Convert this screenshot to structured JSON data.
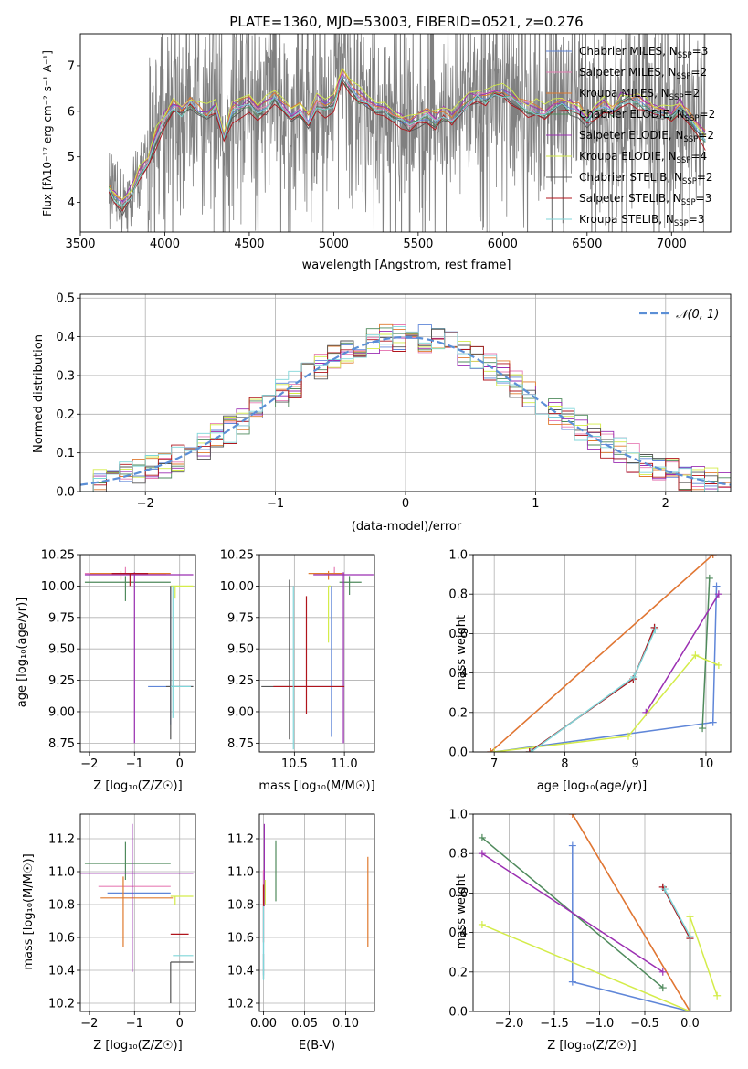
{
  "colors": {
    "Chabrier MILES": "#5f86d8",
    "Salpeter MILES": "#e77fb6",
    "Kroupa MILES": "#e07a2e",
    "Chabrier ELODIE": "#4f8a5c",
    "Salpeter ELODIE": "#9b2fb2",
    "Kroupa ELODIE": "#d4ec4a",
    "Chabrier STELIB": "#555555",
    "Salpeter STELIB": "#b0151c",
    "Kroupa STELIB": "#7fd6d9",
    "data": "#808080",
    "gaussian": "#5b8fd6"
  },
  "chart_data": [
    {
      "type": "line",
      "id": "spectrum",
      "title": "PLATE=1360, MJD=53003, FIBERID=0521, z=0.276",
      "xlabel": "wavelength [Angstrom, rest frame]",
      "ylabel": "Flux [fλ10⁻¹⁷ erg cm⁻² s⁻¹ A⁻¹]",
      "xlim": [
        3500,
        7350
      ],
      "ylim": [
        3.35,
        7.7
      ],
      "xticks": [
        3500,
        4000,
        4500,
        5000,
        5500,
        6000,
        6500,
        7000
      ],
      "yticks": [
        4,
        5,
        6,
        7
      ],
      "grid": false,
      "legend_position": "top-right",
      "legend": [
        {
          "name": "Chabrier MILES",
          "label": "Chabrier MILES, N",
          "sub": "SSP",
          "n": "=3"
        },
        {
          "name": "Salpeter MILES",
          "label": "Salpeter MILES, N",
          "sub": "SSP",
          "n": "=2"
        },
        {
          "name": "Kroupa MILES",
          "label": "Kroupa MILES, N",
          "sub": "SSP",
          "n": "=2"
        },
        {
          "name": "Chabrier ELODIE",
          "label": "Chabrier ELODIE, N",
          "sub": "SSP",
          "n": "=2"
        },
        {
          "name": "Salpeter ELODIE",
          "label": "Salpeter ELODIE, N",
          "sub": "SSP",
          "n": "=2"
        },
        {
          "name": "Kroupa ELODIE",
          "label": "Kroupa ELODIE, N",
          "sub": "SSP",
          "n": "=4"
        },
        {
          "name": "Chabrier STELIB",
          "label": "Chabrier STELIB, N",
          "sub": "SSP",
          "n": "=2"
        },
        {
          "name": "Salpeter STELIB",
          "label": "Salpeter STELIB, N",
          "sub": "SSP",
          "n": "=3"
        },
        {
          "name": "Kroupa STELIB",
          "label": "Kroupa STELIB, N",
          "sub": "SSP",
          "n": "=3"
        }
      ],
      "model_x": [
        3670,
        3700,
        3750,
        3800,
        3850,
        3900,
        3950,
        4000,
        4050,
        4100,
        4150,
        4200,
        4250,
        4300,
        4350,
        4400,
        4450,
        4500,
        4550,
        4600,
        4650,
        4700,
        4750,
        4800,
        4850,
        4900,
        4950,
        5000,
        5050,
        5100,
        5150,
        5200,
        5250,
        5300,
        5350,
        5400,
        5450,
        5500,
        5550,
        5600,
        5650,
        5700,
        5750,
        5800,
        5850,
        5900,
        5950,
        6000,
        6050,
        6100,
        6150,
        6200,
        6250,
        6300,
        6350,
        6400,
        6450,
        6500,
        6550,
        6600,
        6650,
        6700,
        6750,
        6800,
        6850,
        6900,
        6950,
        7000,
        7050,
        7100,
        7150,
        7200
      ],
      "model_y": [
        4.3,
        4.1,
        3.9,
        4.2,
        4.6,
        4.9,
        5.4,
        5.8,
        6.1,
        6.0,
        6.2,
        6.0,
        5.9,
        6.1,
        5.5,
        6.0,
        6.1,
        6.2,
        6.0,
        6.1,
        6.3,
        6.1,
        5.9,
        6.0,
        5.8,
        6.2,
        6.1,
        6.2,
        6.8,
        6.5,
        6.3,
        6.2,
        6.1,
        6.0,
        5.9,
        5.8,
        5.7,
        5.8,
        5.9,
        5.8,
        5.9,
        5.8,
        6.0,
        6.2,
        6.3,
        6.3,
        6.4,
        6.4,
        6.3,
        6.2,
        6.1,
        6.0,
        5.9,
        6.1,
        6.2,
        6.1,
        6.0,
        5.8,
        6.0,
        6.1,
        6.0,
        6.2,
        6.3,
        6.2,
        6.1,
        6.0,
        6.0,
        5.9,
        6.1,
        5.9,
        5.6,
        5.4
      ],
      "model_offsets": [
        0.0,
        0.02,
        0.08,
        -0.05,
        0.1,
        0.15,
        -0.08,
        -0.12,
        -0.03
      ],
      "data_range": [
        3670,
        7200
      ],
      "data_noise": 1.6
    },
    {
      "type": "histogram",
      "id": "residuals",
      "xlabel": "(data-model)/error",
      "ylabel": "Normed distribution",
      "xlim": [
        -2.5,
        2.5
      ],
      "ylim": [
        0,
        0.51
      ],
      "xticks": [
        -2,
        -1,
        0,
        1,
        2
      ],
      "yticks": [
        0.0,
        0.1,
        0.2,
        0.3,
        0.4,
        0.5
      ],
      "grid": true,
      "legend_position": "top-right",
      "legend_label": "𝒩(0, 1)",
      "bin_width": 0.1,
      "bin_start": -2.5
    },
    {
      "type": "scatter",
      "id": "age-vs-Z",
      "xlabel": "Z [log₁₀(Z/Z☉)]",
      "ylabel": "age  [log₁₀(age/yr)]",
      "xlim": [
        -2.2,
        0.35
      ],
      "ylim": [
        8.68,
        10.25
      ],
      "xticks": [
        -2,
        -1,
        0
      ],
      "yticks": [
        8.75,
        9.0,
        9.25,
        9.5,
        9.75,
        10.0,
        10.25
      ],
      "grid": true,
      "points": [
        {
          "model": "Chabrier MILES",
          "x": -0.2,
          "y": 9.2,
          "xerr": [
            0.5,
            0.5
          ],
          "yerr": [
            0.3,
            0.8
          ]
        },
        {
          "model": "Salpeter MILES",
          "x": -1.2,
          "y": 10.1,
          "xerr": [
            0.9,
            0.9
          ],
          "yerr": [
            0.0,
            0.05
          ]
        },
        {
          "model": "Kroupa MILES",
          "x": -1.3,
          "y": 10.1,
          "xerr": [
            0.7,
            1.1
          ],
          "yerr": [
            0.05,
            0.02
          ]
        },
        {
          "model": "Chabrier ELODIE",
          "x": -1.2,
          "y": 10.03,
          "xerr": [
            0.9,
            1.0
          ],
          "yerr": [
            0.15,
            0.05
          ]
        },
        {
          "model": "Salpeter ELODIE",
          "x": -1.0,
          "y": 10.09,
          "xerr": [
            1.1,
            1.3
          ],
          "yerr": [
            1.34,
            0.02
          ]
        },
        {
          "model": "Kroupa ELODIE",
          "x": -0.1,
          "y": 10.0,
          "xerr": [
            0.1,
            0.4
          ],
          "yerr": [
            0.1,
            0.0
          ]
        },
        {
          "model": "Chabrier STELIB",
          "x": -0.2,
          "y": 9.2,
          "xerr": [
            0.1,
            0.5
          ],
          "yerr": [
            0.42,
            0.8
          ]
        },
        {
          "model": "Salpeter STELIB",
          "x": -1.1,
          "y": 10.1,
          "xerr": [
            0.4,
            0.4
          ],
          "yerr": [
            0.1,
            0.0
          ]
        },
        {
          "model": "Kroupa STELIB",
          "x": -0.15,
          "y": 9.2,
          "xerr": [
            0.05,
            0.4
          ],
          "yerr": [
            0.25,
            0.8
          ]
        }
      ]
    },
    {
      "type": "scatter",
      "id": "age-vs-mass",
      "xlabel": "mass [log₁₀(M/M☉)]",
      "xlim": [
        10.15,
        11.3
      ],
      "ylim": [
        8.68,
        10.25
      ],
      "xticks": [
        10.5,
        11.0
      ],
      "yticks": [
        8.75,
        9.0,
        9.25,
        9.5,
        9.75,
        10.0,
        10.25
      ],
      "grid": true,
      "points": [
        {
          "model": "Chabrier MILES",
          "x": 10.87,
          "y": 9.2,
          "xerr": [
            0.42,
            0.12
          ],
          "yerr": [
            0.4,
            0.8
          ]
        },
        {
          "model": "Salpeter MILES",
          "x": 10.9,
          "y": 10.1,
          "xerr": [
            0.1,
            0.1
          ],
          "yerr": [
            0.0,
            0.05
          ]
        },
        {
          "model": "Kroupa MILES",
          "x": 10.84,
          "y": 10.1,
          "xerr": [
            0.2,
            0.14
          ],
          "yerr": [
            0.05,
            0.02
          ]
        },
        {
          "model": "Chabrier ELODIE",
          "x": 11.05,
          "y": 10.03,
          "xerr": [
            0.1,
            0.12
          ],
          "yerr": [
            0.1,
            0.05
          ]
        },
        {
          "model": "Salpeter ELODIE",
          "x": 10.99,
          "y": 10.09,
          "xerr": [
            0.3,
            0.3
          ],
          "yerr": [
            1.34,
            0.02
          ]
        },
        {
          "model": "Kroupa ELODIE",
          "x": 10.84,
          "y": 10.0,
          "xerr": [
            0.0,
            0.02
          ],
          "yerr": [
            0.45,
            0.0
          ]
        },
        {
          "model": "Chabrier STELIB",
          "x": 10.45,
          "y": 9.2,
          "xerr": [
            0.28,
            0.0
          ],
          "yerr": [
            0.42,
            0.85
          ]
        },
        {
          "model": "Salpeter STELIB",
          "x": 10.62,
          "y": 9.2,
          "xerr": [
            0.33,
            0.38
          ],
          "yerr": [
            0.22,
            0.72
          ]
        },
        {
          "model": "Kroupa STELIB",
          "x": 10.49,
          "y": 9.2,
          "xerr": [
            0.0,
            0.0
          ],
          "yerr": [
            0.5,
            0.8
          ]
        }
      ]
    },
    {
      "type": "line",
      "id": "weight-vs-age",
      "xlabel": "age  [log₁₀(age/yr)]",
      "ylabel": "mass weight",
      "xlim": [
        6.7,
        10.35
      ],
      "ylim": [
        0,
        1
      ],
      "xticks": [
        7,
        8,
        9,
        10
      ],
      "yticks": [
        0.0,
        0.2,
        0.4,
        0.6,
        0.8,
        1.0
      ],
      "grid": true,
      "series": [
        {
          "model": "Chabrier MILES",
          "x": [
            7.0,
            10.1,
            10.15
          ],
          "y": [
            0.0,
            0.15,
            0.84
          ]
        },
        {
          "model": "Salpeter MILES",
          "x": [
            6.95,
            10.1
          ],
          "y": [
            0.0,
            1.0
          ]
        },
        {
          "model": "Kroupa MILES",
          "x": [
            6.95,
            10.1
          ],
          "y": [
            0.0,
            1.0
          ]
        },
        {
          "model": "Chabrier ELODIE",
          "x": [
            9.95,
            10.05
          ],
          "y": [
            0.12,
            0.88
          ]
        },
        {
          "model": "Salpeter ELODIE",
          "x": [
            9.15,
            10.18
          ],
          "y": [
            0.2,
            0.8
          ]
        },
        {
          "model": "Kroupa ELODIE",
          "x": [
            7.0,
            8.9,
            9.85,
            10.18
          ],
          "y": [
            0.0,
            0.08,
            0.49,
            0.44
          ]
        },
        {
          "model": "Chabrier STELIB",
          "x": [
            7.5,
            8.97,
            9.27
          ],
          "y": [
            0.0,
            0.37,
            0.63
          ]
        },
        {
          "model": "Salpeter STELIB",
          "x": [
            7.5,
            8.97,
            9.27
          ],
          "y": [
            0.0,
            0.37,
            0.63
          ]
        },
        {
          "model": "Kroupa STELIB",
          "x": [
            7.52,
            8.98,
            9.28
          ],
          "y": [
            0.0,
            0.38,
            0.62
          ]
        }
      ]
    },
    {
      "type": "scatter",
      "id": "mass-vs-Z",
      "xlabel": "Z [log₁₀(Z/Z☉)]",
      "ylabel": "mass [log₁₀(M/M☉)]",
      "xlim": [
        -2.2,
        0.35
      ],
      "ylim": [
        10.15,
        11.35
      ],
      "xticks": [
        -2,
        -1,
        0
      ],
      "yticks": [
        10.2,
        10.4,
        10.6,
        10.8,
        11.0,
        11.2
      ],
      "grid": true,
      "points": [
        {
          "model": "Chabrier MILES",
          "x": -1.3,
          "y": 10.87,
          "xerr": [
            0.3,
            1.1
          ],
          "yerr": [
            0.0,
            0.0
          ]
        },
        {
          "model": "Salpeter MILES",
          "x": -1.3,
          "y": 10.91,
          "xerr": [
            0.5,
            1.1
          ],
          "yerr": [
            0.0,
            0.0
          ]
        },
        {
          "model": "Kroupa MILES",
          "x": -1.25,
          "y": 10.84,
          "xerr": [
            0.5,
            1.1
          ],
          "yerr": [
            0.3,
            0.13
          ]
        },
        {
          "model": "Chabrier ELODIE",
          "x": -1.2,
          "y": 11.05,
          "xerr": [
            0.9,
            1.0
          ],
          "yerr": [
            0.1,
            0.13
          ]
        },
        {
          "model": "Salpeter ELODIE",
          "x": -1.05,
          "y": 10.99,
          "xerr": [
            1.15,
            1.35
          ],
          "yerr": [
            0.6,
            0.3
          ]
        },
        {
          "model": "Kroupa ELODIE",
          "x": -0.1,
          "y": 10.85,
          "xerr": [
            0.1,
            0.4
          ],
          "yerr": [
            0.05,
            0.0
          ]
        },
        {
          "model": "Chabrier STELIB",
          "x": -0.2,
          "y": 10.45,
          "xerr": [
            0.0,
            0.5
          ],
          "yerr": [
            0.25,
            0.0
          ]
        },
        {
          "model": "Salpeter STELIB",
          "x": -0.2,
          "y": 10.62,
          "xerr": [
            0.0,
            0.4
          ],
          "yerr": [
            0.0,
            0.0
          ]
        },
        {
          "model": "Kroupa STELIB",
          "x": -0.15,
          "y": 10.49,
          "xerr": [
            0.0,
            0.45
          ],
          "yerr": [
            0.0,
            0.0
          ]
        }
      ]
    },
    {
      "type": "scatter",
      "id": "mass-vs-EBV",
      "xlabel": "E(B-V)",
      "xlim": [
        -0.005,
        0.135
      ],
      "ylim": [
        10.15,
        11.35
      ],
      "xticks": [
        0.0,
        0.05,
        0.1
      ],
      "yticks": [
        10.2,
        10.4,
        10.6,
        10.8,
        11.0,
        11.2
      ],
      "grid": true,
      "points": [
        {
          "model": "Chabrier MILES",
          "x": 0.0,
          "y": 10.87,
          "yerr": [
            0.5,
            0.12
          ]
        },
        {
          "model": "Salpeter MILES",
          "x": 0.0,
          "y": 10.91,
          "yerr": [
            0.1,
            0.1
          ]
        },
        {
          "model": "Kroupa MILES",
          "x": 0.127,
          "y": 10.84,
          "yerr": [
            0.3,
            0.25
          ]
        },
        {
          "model": "Chabrier ELODIE",
          "x": 0.015,
          "y": 11.05,
          "yerr": [
            0.23,
            0.14
          ]
        },
        {
          "model": "Salpeter ELODIE",
          "x": 0.001,
          "y": 10.99,
          "yerr": [
            0.2,
            0.3
          ]
        },
        {
          "model": "Kroupa ELODIE",
          "x": 0.002,
          "y": 10.85,
          "yerr": [
            0.05,
            0.1
          ]
        },
        {
          "model": "Chabrier STELIB",
          "x": 0.0,
          "y": 10.45,
          "yerr": [
            0.1,
            0.05
          ]
        },
        {
          "model": "Salpeter STELIB",
          "x": 0.0,
          "y": 10.62,
          "yerr": [
            0.05,
            0.3
          ]
        },
        {
          "model": "Kroupa STELIB",
          "x": 0.0,
          "y": 10.49,
          "yerr": [
            0.15,
            0.3
          ]
        }
      ]
    },
    {
      "type": "line",
      "id": "weight-vs-Z",
      "xlabel": "Z [log₁₀(Z/Z☉)]",
      "ylabel": "mass weight",
      "xlim": [
        -2.4,
        0.45
      ],
      "ylim": [
        0,
        1
      ],
      "xticks": [
        -2.0,
        -1.5,
        -1.0,
        -0.5,
        0.0
      ],
      "yticks": [
        0.0,
        0.2,
        0.4,
        0.6,
        0.8,
        1.0
      ],
      "grid": true,
      "series": [
        {
          "model": "Chabrier MILES",
          "x": [
            -1.3,
            -1.3,
            0.0
          ],
          "y": [
            0.84,
            0.15,
            0.0
          ]
        },
        {
          "model": "Salpeter MILES",
          "x": [
            -1.3,
            0.0
          ],
          "y": [
            1.0,
            0.0
          ]
        },
        {
          "model": "Kroupa MILES",
          "x": [
            -1.3,
            0.0
          ],
          "y": [
            1.0,
            0.0
          ]
        },
        {
          "model": "Chabrier ELODIE",
          "x": [
            -2.3,
            -0.3
          ],
          "y": [
            0.88,
            0.12
          ]
        },
        {
          "model": "Salpeter ELODIE",
          "x": [
            -2.3,
            -0.3
          ],
          "y": [
            0.8,
            0.2
          ]
        },
        {
          "model": "Kroupa ELODIE",
          "x": [
            -2.3,
            0.0,
            0.0,
            0.3
          ],
          "y": [
            0.44,
            0.0,
            0.48,
            0.08
          ]
        },
        {
          "model": "Chabrier STELIB",
          "x": [
            -0.3,
            0.0,
            0.0
          ],
          "y": [
            0.63,
            0.37,
            0.0
          ]
        },
        {
          "model": "Salpeter STELIB",
          "x": [
            -0.3,
            0.0,
            0.0
          ],
          "y": [
            0.63,
            0.37,
            0.0
          ]
        },
        {
          "model": "Kroupa STELIB",
          "x": [
            -0.28,
            0.0,
            0.0
          ],
          "y": [
            0.62,
            0.38,
            0.0
          ]
        }
      ]
    }
  ]
}
